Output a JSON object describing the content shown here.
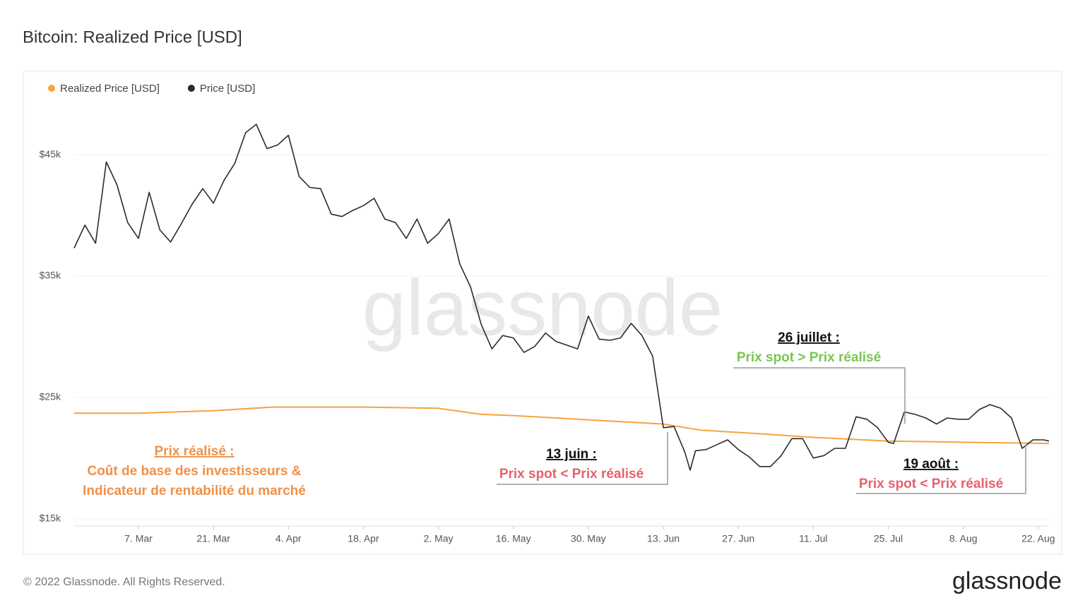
{
  "chart_data": {
    "type": "line",
    "title": "Bitcoin: Realized Price [USD]",
    "watermark": "glassnode",
    "footer": "© 2022 Glassnode. All Rights Reserved.",
    "logo": "glassnode",
    "xlim": [
      "02-23",
      "08-24"
    ],
    "xticks": [
      {
        "value": "03-07",
        "label": "7. Mar"
      },
      {
        "value": "03-21",
        "label": "21. Mar"
      },
      {
        "value": "04-04",
        "label": "4. Apr"
      },
      {
        "value": "04-18",
        "label": "18. Apr"
      },
      {
        "value": "05-02",
        "label": "2. May"
      },
      {
        "value": "05-16",
        "label": "16. May"
      },
      {
        "value": "05-30",
        "label": "30. May"
      },
      {
        "value": "06-13",
        "label": "13. Jun"
      },
      {
        "value": "06-27",
        "label": "27. Jun"
      },
      {
        "value": "07-11",
        "label": "11. Jul"
      },
      {
        "value": "07-25",
        "label": "25. Jul"
      },
      {
        "value": "08-08",
        "label": "8. Aug"
      },
      {
        "value": "08-22",
        "label": "22. Aug"
      }
    ],
    "ylim": [
      14400,
      49600
    ],
    "yticks": [
      {
        "value": 15000,
        "label": "$15k"
      },
      {
        "value": 25000,
        "label": "$25k"
      },
      {
        "value": 35000,
        "label": "$35k"
      },
      {
        "value": 45000,
        "label": "$45k"
      }
    ],
    "grid": true,
    "series": [
      {
        "name": "Realized Price [USD]",
        "color": "#f7a440",
        "x": [
          "02-23",
          "03-07",
          "03-21",
          "04-01",
          "04-18",
          "05-02",
          "05-10",
          "05-16",
          "06-01",
          "06-13",
          "06-20",
          "07-01",
          "07-11",
          "07-25",
          "08-08",
          "08-24"
        ],
        "values": [
          23700,
          23700,
          23900,
          24200,
          24200,
          24100,
          23600,
          23500,
          23100,
          22800,
          22300,
          22000,
          21700,
          21400,
          21300,
          21200
        ]
      },
      {
        "name": "Price [USD]",
        "color": "#2b2b2b",
        "x": [
          "02-23",
          "02-25",
          "02-27",
          "03-01",
          "03-03",
          "03-05",
          "03-07",
          "03-09",
          "03-11",
          "03-13",
          "03-15",
          "03-17",
          "03-19",
          "03-21",
          "03-23",
          "03-25",
          "03-27",
          "03-29",
          "03-31",
          "04-02",
          "04-04",
          "04-06",
          "04-08",
          "04-10",
          "04-12",
          "04-14",
          "04-16",
          "04-18",
          "04-20",
          "04-22",
          "04-24",
          "04-26",
          "04-28",
          "04-30",
          "05-02",
          "05-04",
          "05-06",
          "05-08",
          "05-10",
          "05-12",
          "05-14",
          "05-16",
          "05-18",
          "05-20",
          "05-22",
          "05-24",
          "05-26",
          "05-28",
          "05-30",
          "06-01",
          "06-03",
          "06-05",
          "06-07",
          "06-09",
          "06-11",
          "06-13",
          "06-15",
          "06-17",
          "06-18",
          "06-19",
          "06-21",
          "06-23",
          "06-25",
          "06-27",
          "06-29",
          "07-01",
          "07-03",
          "07-05",
          "07-07",
          "07-09",
          "07-11",
          "07-13",
          "07-15",
          "07-17",
          "07-19",
          "07-21",
          "07-23",
          "07-25",
          "07-26",
          "07-28",
          "07-30",
          "08-01",
          "08-03",
          "08-05",
          "08-07",
          "08-09",
          "08-11",
          "08-13",
          "08-15",
          "08-17",
          "08-19",
          "08-21",
          "08-23",
          "08-24"
        ],
        "values": [
          37300,
          39200,
          37700,
          44400,
          42500,
          39400,
          38100,
          41900,
          38800,
          37800,
          39300,
          40900,
          42200,
          41000,
          42900,
          44300,
          46800,
          47500,
          45500,
          45800,
          46600,
          43200,
          42300,
          42200,
          40100,
          39900,
          40400,
          40800,
          41400,
          39700,
          39400,
          38100,
          39700,
          37700,
          38500,
          39700,
          36000,
          34100,
          31000,
          29000,
          30100,
          29900,
          28700,
          29200,
          30300,
          29600,
          29300,
          29000,
          31700,
          29800,
          29700,
          29900,
          31100,
          30100,
          28400,
          22500,
          22600,
          20500,
          19000,
          20600,
          20700,
          21100,
          21500,
          20700,
          20100,
          19300,
          19300,
          20200,
          21600,
          21600,
          20000,
          20200,
          20800,
          20800,
          23400,
          23200,
          22500,
          21300,
          21200,
          23800,
          23600,
          23300,
          22800,
          23300,
          23200,
          23200,
          24000,
          24400,
          24100,
          23300,
          20800,
          21500,
          21500,
          21400
        ]
      }
    ],
    "annotations": [
      {
        "title": "Prix réalisé :",
        "text": [
          "Coût de base des investisseurs &",
          "Indicateur de rentabilité du marché"
        ],
        "color": "#f0914a"
      },
      {
        "title": "13 juin :",
        "text": [
          "Prix spot < Prix réalisé"
        ],
        "color": "#e8606a"
      },
      {
        "title": "26 juillet :",
        "text": [
          "Prix spot > Prix réalisé"
        ],
        "color": "#7ac74f"
      },
      {
        "title": "19 août :",
        "text": [
          "Prix spot < Prix réalisé"
        ],
        "color": "#e8606a"
      }
    ]
  }
}
